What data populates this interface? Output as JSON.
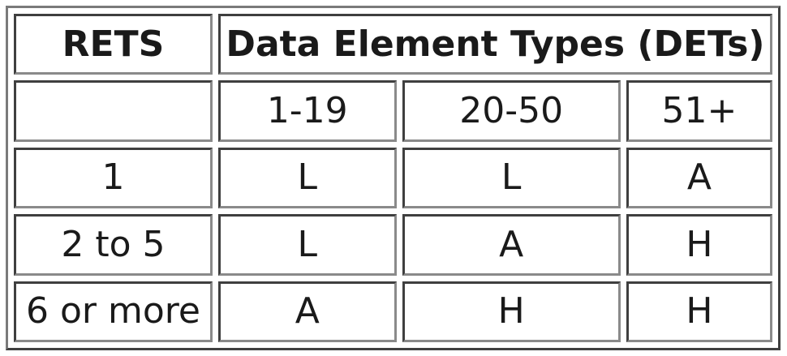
{
  "table": {
    "header": {
      "rets_label": "RETS",
      "det_label": "Data Element Types (DETs)"
    },
    "det_ranges": [
      "1-19",
      "20-50",
      "51+"
    ],
    "rows": [
      {
        "rets": "1",
        "values": [
          "L",
          "L",
          "A"
        ]
      },
      {
        "rets": "2 to 5",
        "values": [
          "L",
          "A",
          "H"
        ]
      },
      {
        "rets": "6 or more",
        "values": [
          "A",
          "H",
          "H"
        ]
      }
    ]
  }
}
